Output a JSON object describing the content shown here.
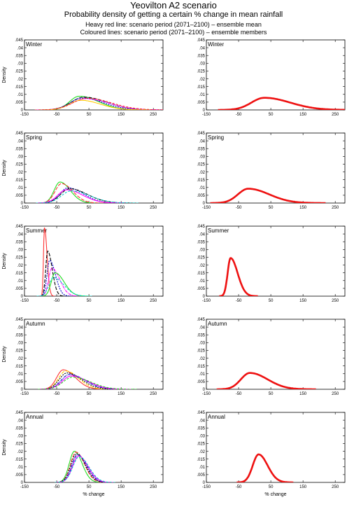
{
  "figure": {
    "title": "Yeovilton A2 scenario",
    "subtitle": "Probability density of getting a certain % change in mean rainfall",
    "note_mean": "Heavy red line: scenario period (2071–2100) – ensemble mean",
    "note_members": "Coloured lines: scenario period (2071–2100) – ensemble members"
  },
  "chart_data": [
    {
      "type": "line",
      "panel": "Winter members",
      "season": "Winter",
      "ylabel": "Density",
      "xlabel": "",
      "xlim": [
        -150,
        280
      ],
      "ylim": [
        0,
        0.045
      ],
      "xticks": [
        -150,
        -50,
        50,
        150,
        250
      ],
      "yticks": [
        0,
        0.005,
        0.01,
        0.015,
        0.02,
        0.025,
        0.03,
        0.035,
        0.04,
        0.045
      ],
      "members": [
        {
          "mode": 20,
          "peak": 0.0088,
          "sl": 30,
          "sr": 60,
          "color": "#22dd22"
        },
        {
          "mode": 35,
          "peak": 0.0082,
          "sl": 40,
          "sr": 70,
          "color": "#000000"
        },
        {
          "mode": 30,
          "peak": 0.0077,
          "sl": 38,
          "sr": 65,
          "color": "#0000cc"
        },
        {
          "mode": 40,
          "peak": 0.0072,
          "sl": 42,
          "sr": 72,
          "color": "#ff00ff"
        },
        {
          "mode": 25,
          "peak": 0.0062,
          "sl": 35,
          "sr": 60,
          "color": "#ffcc00"
        },
        {
          "mode": 45,
          "peak": 0.0075,
          "sl": 45,
          "sr": 75,
          "color": "#ff3333"
        }
      ]
    },
    {
      "type": "line",
      "panel": "Winter mean",
      "season": "Winter",
      "ylabel": "",
      "xlabel": "",
      "xlim": [
        -150,
        280
      ],
      "ylim": [
        0,
        0.045
      ],
      "xticks": [
        -150,
        -50,
        50,
        150,
        250
      ],
      "yticks": [
        0,
        0.005,
        0.01,
        0.015,
        0.02,
        0.025,
        0.03,
        0.035,
        0.04,
        0.045
      ],
      "mean": {
        "mode": 30,
        "peak": 0.0078,
        "sl": 40,
        "sr": 80,
        "color": "#ee1111"
      }
    },
    {
      "type": "line",
      "panel": "Spring members",
      "season": "Spring",
      "ylabel": "Density",
      "xlabel": "",
      "xlim": [
        -150,
        280
      ],
      "ylim": [
        0,
        0.045
      ],
      "xticks": [
        -150,
        -50,
        50,
        150,
        250
      ],
      "yticks": [
        0,
        0.005,
        0.01,
        0.015,
        0.02,
        0.025,
        0.03,
        0.035,
        0.04,
        0.045
      ],
      "members": [
        {
          "mode": -40,
          "peak": 0.0135,
          "sl": 18,
          "sr": 32,
          "color": "#22dd22"
        },
        {
          "mode": -35,
          "peak": 0.0125,
          "sl": 20,
          "sr": 35,
          "color": "#ff3333"
        },
        {
          "mode": -15,
          "peak": 0.0098,
          "sl": 25,
          "sr": 48,
          "color": "#0000cc"
        },
        {
          "mode": -10,
          "peak": 0.0092,
          "sl": 28,
          "sr": 55,
          "color": "#000000"
        },
        {
          "mode": -20,
          "peak": 0.0085,
          "sl": 26,
          "sr": 50,
          "color": "#ff00ff"
        },
        {
          "mode": -5,
          "peak": 0.0078,
          "sl": 30,
          "sr": 58,
          "color": "#00cccc"
        }
      ]
    },
    {
      "type": "line",
      "panel": "Spring mean",
      "season": "Spring",
      "ylabel": "",
      "xlabel": "",
      "xlim": [
        -150,
        280
      ],
      "ylim": [
        0,
        0.045
      ],
      "xticks": [
        -150,
        -50,
        50,
        150,
        250
      ],
      "yticks": [
        0,
        0.005,
        0.01,
        0.015,
        0.02,
        0.025,
        0.03,
        0.035,
        0.04,
        0.045
      ],
      "mean": {
        "mode": -20,
        "peak": 0.0092,
        "sl": 32,
        "sr": 65,
        "color": "#ee1111"
      }
    },
    {
      "type": "line",
      "panel": "Summer members",
      "season": "Summer",
      "ylabel": "Density",
      "xlabel": "",
      "xlim": [
        -150,
        280
      ],
      "ylim": [
        0,
        0.045
      ],
      "xticks": [
        -150,
        -50,
        50,
        150,
        250
      ],
      "yticks": [
        0,
        0.005,
        0.01,
        0.015,
        0.02,
        0.025,
        0.03,
        0.035,
        0.04,
        0.045
      ],
      "members": [
        {
          "mode": -88,
          "peak": 0.044,
          "sl": 3,
          "sr": 8,
          "color": "#ff3333"
        },
        {
          "mode": -78,
          "peak": 0.029,
          "sl": 6,
          "sr": 14,
          "color": "#000000"
        },
        {
          "mode": -72,
          "peak": 0.023,
          "sl": 8,
          "sr": 18,
          "color": "#0000cc"
        },
        {
          "mode": -65,
          "peak": 0.018,
          "sl": 10,
          "sr": 24,
          "color": "#ff00ff"
        },
        {
          "mode": -55,
          "peak": 0.015,
          "sl": 12,
          "sr": 28,
          "color": "#22dd22"
        },
        {
          "mode": -60,
          "peak": 0.012,
          "sl": 14,
          "sr": 32,
          "color": "#00cccc"
        }
      ]
    },
    {
      "type": "line",
      "panel": "Summer mean",
      "season": "Summer",
      "ylabel": "",
      "xlabel": "",
      "xlim": [
        -150,
        280
      ],
      "ylim": [
        0,
        0.045
      ],
      "xticks": [
        -150,
        -50,
        50,
        150,
        250
      ],
      "yticks": [
        0,
        0.005,
        0.01,
        0.015,
        0.02,
        0.025,
        0.03,
        0.035,
        0.04,
        0.045
      ],
      "mean": {
        "mode": -75,
        "peak": 0.0245,
        "sl": 9,
        "sr": 22,
        "color": "#ee1111"
      }
    },
    {
      "type": "line",
      "panel": "Autumn members",
      "season": "Autumn",
      "ylabel": "Density",
      "xlabel": "",
      "xlim": [
        -150,
        280
      ],
      "ylim": [
        0,
        0.045
      ],
      "xticks": [
        -150,
        -50,
        50,
        150,
        250
      ],
      "yticks": [
        0,
        0.005,
        0.01,
        0.015,
        0.02,
        0.025,
        0.03,
        0.035,
        0.04,
        0.045
      ],
      "members": [
        {
          "mode": -30,
          "peak": 0.0125,
          "sl": 20,
          "sr": 38,
          "color": "#ff3333"
        },
        {
          "mode": -22,
          "peak": 0.0118,
          "sl": 22,
          "sr": 40,
          "color": "#ffcc00"
        },
        {
          "mode": -18,
          "peak": 0.0105,
          "sl": 24,
          "sr": 45,
          "color": "#000000"
        },
        {
          "mode": -10,
          "peak": 0.0095,
          "sl": 26,
          "sr": 48,
          "color": "#0000cc"
        },
        {
          "mode": -5,
          "peak": 0.0085,
          "sl": 28,
          "sr": 52,
          "color": "#ff00ff"
        },
        {
          "mode": 0,
          "peak": 0.0078,
          "sl": 30,
          "sr": 55,
          "color": "#22dd22"
        }
      ]
    },
    {
      "type": "line",
      "panel": "Autumn mean",
      "season": "Autumn",
      "ylabel": "",
      "xlabel": "",
      "xlim": [
        -150,
        280
      ],
      "ylim": [
        0,
        0.045
      ],
      "xticks": [
        -150,
        -50,
        50,
        150,
        250
      ],
      "yticks": [
        0,
        0.005,
        0.01,
        0.015,
        0.02,
        0.025,
        0.03,
        0.035,
        0.04,
        0.045
      ],
      "mean": {
        "mode": -15,
        "peak": 0.0105,
        "sl": 28,
        "sr": 55,
        "color": "#ee1111"
      }
    },
    {
      "type": "line",
      "panel": "Annual members",
      "season": "Annual",
      "ylabel": "Density",
      "xlabel": "% change",
      "xlim": [
        -150,
        280
      ],
      "ylim": [
        0,
        0.045
      ],
      "xticks": [
        -150,
        -50,
        50,
        150,
        250
      ],
      "yticks": [
        0,
        0.005,
        0.01,
        0.015,
        0.02,
        0.025,
        0.03,
        0.035,
        0.04,
        0.045
      ],
      "members": [
        {
          "mode": 5,
          "peak": 0.02,
          "sl": 16,
          "sr": 24,
          "color": "#22dd22"
        },
        {
          "mode": 10,
          "peak": 0.0195,
          "sl": 17,
          "sr": 26,
          "color": "#ff3333"
        },
        {
          "mode": 12,
          "peak": 0.0185,
          "sl": 18,
          "sr": 27,
          "color": "#000000"
        },
        {
          "mode": 15,
          "peak": 0.0178,
          "sl": 18,
          "sr": 28,
          "color": "#0000cc"
        },
        {
          "mode": 18,
          "peak": 0.017,
          "sl": 19,
          "sr": 29,
          "color": "#ff00ff"
        },
        {
          "mode": 20,
          "peak": 0.0165,
          "sl": 20,
          "sr": 30,
          "color": "#00cccc"
        }
      ]
    },
    {
      "type": "line",
      "panel": "Annual mean",
      "season": "Annual",
      "ylabel": "",
      "xlabel": "% change",
      "xlim": [
        -150,
        280
      ],
      "ylim": [
        0,
        0.045
      ],
      "xticks": [
        -150,
        -50,
        50,
        150,
        250
      ],
      "yticks": [
        0,
        0.005,
        0.01,
        0.015,
        0.02,
        0.025,
        0.03,
        0.035,
        0.04,
        0.045
      ],
      "mean": {
        "mode": 12,
        "peak": 0.018,
        "sl": 18,
        "sr": 28,
        "color": "#ee1111"
      }
    }
  ]
}
